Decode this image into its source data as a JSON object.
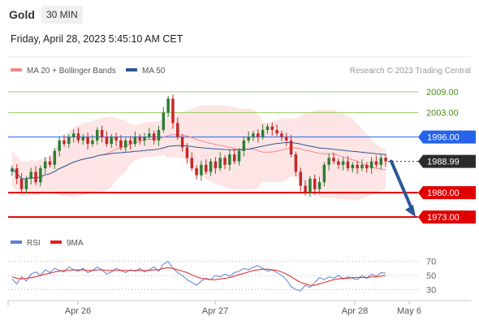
{
  "header": {
    "symbol": "Gold",
    "timeframe": "30 MIN",
    "datetime": "Friday, April 28, 2023 5:45:10 AM CET"
  },
  "legend": {
    "ma20": "MA 20 + Bollinger Bands",
    "ma50": "MA 50",
    "ma20_color": "#f08a8a",
    "ma50_color": "#2b5797",
    "credit": "Research © 2023 Trading Central"
  },
  "rsi_legend": {
    "rsi": "RSI",
    "ma9": "9MA",
    "rsi_color": "#5b7fd6",
    "ma9_color": "#e02020"
  },
  "colors": {
    "up": "#2e7d32",
    "down": "#c62828",
    "band": "#fde0e0",
    "resistance": "#9ccc65",
    "pivot": "#2563eb",
    "support": "#e00000",
    "current": "#2b2b2b",
    "arrow": "#2b5797"
  },
  "chart_data": [
    {
      "type": "candlestick",
      "x_ticks": [
        "Apr 26",
        "Apr 27",
        "Apr 28",
        "May 6"
      ],
      "y_range": [
        1970,
        2012
      ],
      "levels": [
        {
          "label": "2009.00",
          "value": 2009.0,
          "kind": "resistance"
        },
        {
          "label": "2003.00",
          "value": 2003.0,
          "kind": "resistance"
        },
        {
          "label": "1996.00",
          "value": 1996.0,
          "kind": "pivot"
        },
        {
          "label": "1988.99",
          "value": 1988.99,
          "kind": "current"
        },
        {
          "label": "1980.00",
          "value": 1980.0,
          "kind": "support"
        },
        {
          "label": "1973.00",
          "value": 1973.0,
          "kind": "support"
        }
      ],
      "projection": {
        "from": 1988.99,
        "to": 1973.0
      },
      "close": [
        1987,
        1984,
        1981,
        1984,
        1986,
        1983,
        1987,
        1989,
        1988,
        1992,
        1995,
        1994,
        1996,
        1997,
        1995,
        1996,
        1994,
        1995,
        1998,
        1996,
        1994,
        1996,
        1995,
        1993,
        1995,
        1994,
        1996,
        1995,
        1996,
        1997,
        1995,
        1998,
        2003,
        2007,
        2000,
        1996,
        1993,
        1990,
        1987,
        1985,
        1988,
        1986,
        1989,
        1987,
        1990,
        1988,
        1991,
        1989,
        1992,
        1995,
        1996,
        1997,
        1996,
        1998,
        1999,
        1998,
        1997,
        1996,
        1995,
        1991,
        1986,
        1982,
        1980,
        1984,
        1981,
        1983,
        1988,
        1990,
        1989,
        1988,
        1989,
        1987,
        1988,
        1987,
        1988,
        1987,
        1989,
        1988,
        1990,
        1989
      ]
    },
    {
      "type": "line",
      "title": "RSI",
      "y_ticks": [
        70,
        50,
        30
      ],
      "y_range": [
        20,
        80
      ],
      "series": [
        {
          "name": "RSI",
          "values": [
            45,
            38,
            48,
            42,
            52,
            55,
            50,
            58,
            54,
            60,
            57,
            55,
            62,
            58,
            56,
            60,
            54,
            57,
            62,
            58,
            52,
            55,
            60,
            57,
            54,
            58,
            56,
            60,
            55,
            58,
            62,
            56,
            66,
            70,
            60,
            54,
            50,
            44,
            40,
            36,
            42,
            46,
            44,
            50,
            48,
            52,
            49,
            54,
            56,
            60,
            58,
            62,
            64,
            60,
            56,
            58,
            54,
            50,
            44,
            34,
            30,
            28,
            36,
            33,
            40,
            47,
            44,
            48,
            46,
            50,
            45,
            48,
            46,
            44,
            50,
            46,
            52,
            49,
            54,
            53
          ]
        },
        {
          "name": "9MA",
          "values": [
            48,
            46,
            45,
            46,
            47,
            48,
            50,
            52,
            53,
            55,
            56,
            57,
            57,
            58,
            58,
            58,
            57,
            57,
            58,
            58,
            57,
            57,
            57,
            57,
            57,
            57,
            57,
            57,
            57,
            57,
            58,
            58,
            60,
            61,
            60,
            58,
            56,
            54,
            51,
            48,
            46,
            45,
            44,
            44,
            45,
            46,
            47,
            49,
            51,
            53,
            55,
            57,
            58,
            59,
            59,
            58,
            57,
            55,
            52,
            48,
            44,
            40,
            38,
            36,
            36,
            38,
            40,
            42,
            44,
            45,
            46,
            46,
            47,
            47,
            47,
            47,
            48,
            48,
            49,
            50
          ]
        }
      ]
    }
  ]
}
